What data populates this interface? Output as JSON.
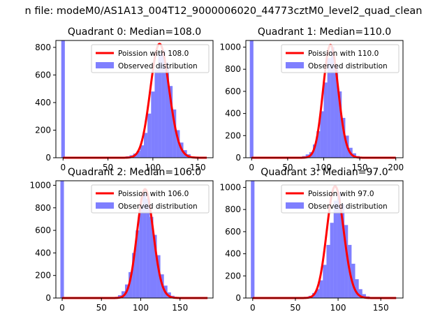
{
  "figure": {
    "suptitle": "n file: modeM0/AS1A13_004T12_9000006020_44773cztM0_level2_quad_clean"
  },
  "colors": {
    "hist": "#0000ff",
    "hist_alpha": 0.5,
    "line": "#ff0000",
    "axes": "#000000"
  },
  "chart_data": [
    {
      "type": "bar",
      "title": "Quadrant 0: Median=108.0",
      "median": 108.0,
      "xlim": [
        -8,
        167
      ],
      "ylim": [
        0,
        850
      ],
      "xticks": [
        0,
        50,
        100,
        150
      ],
      "yticks": [
        0,
        200,
        400,
        600,
        800
      ],
      "xlabel": "",
      "ylabel": "",
      "legend": {
        "position": "upper right",
        "entries": [
          "Poission with 108.0",
          "Observed distribution"
        ]
      },
      "series": [
        {
          "name": "Observed distribution",
          "kind": "hist",
          "bin_width": 4,
          "bins": [
            [
              -2,
              850
            ],
            [
              66,
              5
            ],
            [
              70,
              10
            ],
            [
              74,
              18
            ],
            [
              78,
              30
            ],
            [
              82,
              50
            ],
            [
              86,
              90
            ],
            [
              90,
              180
            ],
            [
              94,
              320
            ],
            [
              98,
              480
            ],
            [
              102,
              640
            ],
            [
              106,
              760
            ],
            [
              110,
              780
            ],
            [
              114,
              690
            ],
            [
              118,
              520
            ],
            [
              122,
              350
            ],
            [
              126,
              200
            ],
            [
              130,
              110
            ],
            [
              134,
              55
            ],
            [
              138,
              25
            ],
            [
              142,
              10
            ],
            [
              146,
              5
            ]
          ]
        },
        {
          "name": "Poission with 108.0",
          "kind": "poisson",
          "lambda": 108.0,
          "peak": 825,
          "x_range": [
            0,
            160
          ]
        }
      ]
    },
    {
      "type": "bar",
      "title": "Quadrant 1: Median=110.0",
      "median": 110.0,
      "xlim": [
        -8,
        210
      ],
      "ylim": [
        0,
        1060
      ],
      "xticks": [
        0,
        50,
        100,
        150,
        200
      ],
      "yticks": [
        0,
        200,
        400,
        600,
        800,
        1000
      ],
      "xlabel": "",
      "ylabel": "",
      "legend": {
        "position": "upper right",
        "entries": [
          "Poission with 110.0",
          "Observed distribution"
        ]
      },
      "series": [
        {
          "name": "Observed distribution",
          "kind": "hist",
          "bin_width": 5,
          "bins": [
            [
              -2.5,
              1060
            ],
            [
              65,
              5
            ],
            [
              70,
              15
            ],
            [
              75,
              30
            ],
            [
              80,
              50
            ],
            [
              85,
              120
            ],
            [
              90,
              240
            ],
            [
              95,
              420
            ],
            [
              100,
              680
            ],
            [
              105,
              900
            ],
            [
              110,
              1000
            ],
            [
              115,
              840
            ],
            [
              120,
              600
            ],
            [
              125,
              360
            ],
            [
              130,
              200
            ],
            [
              135,
              90
            ],
            [
              140,
              40
            ],
            [
              145,
              15
            ],
            [
              150,
              5
            ]
          ]
        },
        {
          "name": "Poission with 110.0",
          "kind": "poisson",
          "lambda": 110.0,
          "peak": 1020,
          "x_range": [
            0,
            200
          ]
        }
      ]
    },
    {
      "type": "bar",
      "title": "Quadrant 2: Median=106.0",
      "median": 106.0,
      "xlim": [
        -8,
        192
      ],
      "ylim": [
        0,
        1040
      ],
      "xticks": [
        0,
        50,
        100,
        150
      ],
      "yticks": [
        0,
        200,
        400,
        600,
        800,
        1000
      ],
      "xlabel": "",
      "ylabel": "",
      "legend": {
        "position": "upper right",
        "entries": [
          "Poission with 106.0",
          "Observed distribution"
        ]
      },
      "series": [
        {
          "name": "Observed distribution",
          "kind": "hist",
          "bin_width": 4.5,
          "bins": [
            [
              -2.25,
              1040
            ],
            [
              62,
              5
            ],
            [
              66.5,
              10
            ],
            [
              71,
              25
            ],
            [
              75.5,
              60
            ],
            [
              80,
              120
            ],
            [
              84.5,
              230
            ],
            [
              89,
              400
            ],
            [
              93.5,
              600
            ],
            [
              98,
              820
            ],
            [
              102.5,
              930
            ],
            [
              107,
              880
            ],
            [
              111.5,
              720
            ],
            [
              116,
              560
            ],
            [
              120.5,
              380
            ],
            [
              125,
              210
            ],
            [
              129.5,
              110
            ],
            [
              134,
              50
            ],
            [
              138.5,
              20
            ],
            [
              143,
              8
            ]
          ]
        },
        {
          "name": "Poission with 106.0",
          "kind": "poisson",
          "lambda": 106.0,
          "peak": 965,
          "x_range": [
            0,
            185
          ]
        }
      ]
    },
    {
      "type": "bar",
      "title": "Quadrant 3: Median=97.0",
      "median": 97.0,
      "xlim": [
        -8,
        176
      ],
      "ylim": [
        0,
        1060
      ],
      "xticks": [
        0,
        50,
        100,
        150
      ],
      "yticks": [
        0,
        200,
        400,
        600,
        800,
        1000
      ],
      "xlabel": "",
      "ylabel": "",
      "legend": {
        "position": "upper right",
        "entries": [
          "Poission with 97.0",
          "Observed distribution"
        ]
      },
      "series": [
        {
          "name": "Observed distribution",
          "kind": "hist",
          "bin_width": 4.2,
          "bins": [
            [
              -2.1,
              1060
            ],
            [
              57,
              5
            ],
            [
              61.2,
              10
            ],
            [
              65.4,
              20
            ],
            [
              69.6,
              45
            ],
            [
              73.8,
              80
            ],
            [
              78,
              160
            ],
            [
              82.2,
              300
            ],
            [
              86.4,
              480
            ],
            [
              90.6,
              680
            ],
            [
              94.8,
              880
            ],
            [
              99,
              960
            ],
            [
              103.2,
              850
            ],
            [
              107.4,
              660
            ],
            [
              111.6,
              480
            ],
            [
              115.8,
              310
            ],
            [
              120,
              170
            ],
            [
              124.2,
              80
            ],
            [
              128.4,
              35
            ],
            [
              132.6,
              15
            ],
            [
              136.8,
              5
            ]
          ]
        },
        {
          "name": "Poission with 97.0",
          "kind": "poisson",
          "lambda": 97.0,
          "peak": 1010,
          "x_range": [
            0,
            168
          ]
        }
      ]
    }
  ]
}
